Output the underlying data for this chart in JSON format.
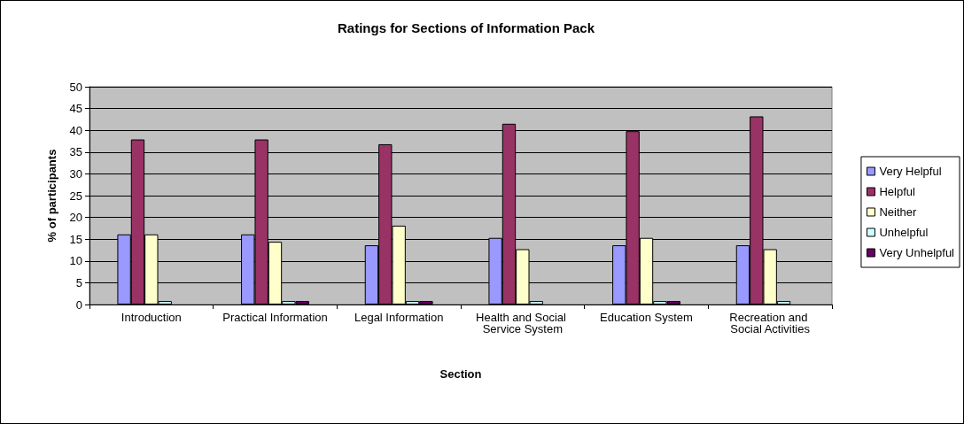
{
  "chart_data": {
    "type": "bar",
    "title": "Ratings for Sections of Information Pack",
    "xlabel": "Section",
    "ylabel": "% of participants",
    "categories": [
      "Introduction",
      "Practical Information",
      "Legal Information",
      "Health and Social Service System",
      "Education System",
      "Recreation and Social Activities"
    ],
    "series": [
      {
        "name": "Very Helpful",
        "color": "#9999ff",
        "values": [
          16.1,
          16.1,
          13.6,
          15.3,
          13.6,
          13.6
        ]
      },
      {
        "name": "Helpful",
        "color": "#993366",
        "values": [
          37.9,
          37.9,
          36.8,
          41.5,
          39.8,
          43.2
        ]
      },
      {
        "name": "Neither",
        "color": "#ffffcc",
        "values": [
          16.1,
          14.4,
          18.1,
          12.7,
          15.3,
          12.7
        ]
      },
      {
        "name": "Unhelpful",
        "color": "#ccffff",
        "values": [
          0.8,
          0.8,
          0.8,
          0.8,
          0.8,
          0.8
        ]
      },
      {
        "name": "Very Unhelpful",
        "color": "#660066",
        "values": [
          null,
          0.8,
          0.8,
          null,
          0.8,
          null
        ]
      }
    ],
    "ylim": [
      0,
      50
    ],
    "yticks": [
      0,
      5,
      10,
      15,
      20,
      25,
      30,
      35,
      40,
      45,
      50
    ],
    "grid": "y",
    "legend": "right"
  }
}
